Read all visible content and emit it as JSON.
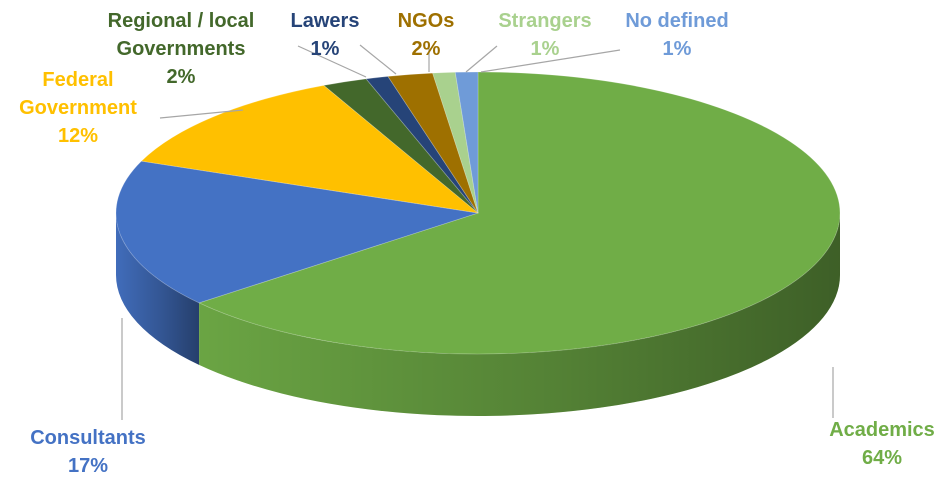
{
  "chart_data": {
    "type": "pie",
    "title": "",
    "style": "3d",
    "legend": "none",
    "categories": [
      "Academics",
      "Consultants",
      "Federal Government",
      "Regional / local Governments",
      "Lawers",
      "NGOs",
      "Strangers",
      "No defined"
    ],
    "values": [
      64,
      17,
      12,
      2,
      1,
      2,
      1,
      1
    ],
    "slices": [
      {
        "label_lines": [
          "Academics"
        ],
        "value": 64,
        "value_label": "64%",
        "color": "#70ad47"
      },
      {
        "label_lines": [
          "Consultants"
        ],
        "value": 17,
        "value_label": "17%",
        "color": "#4472c4"
      },
      {
        "label_lines": [
          "Federal",
          "Government"
        ],
        "value": 12,
        "value_label": "12%",
        "color": "#ffc000"
      },
      {
        "label_lines": [
          "Regional / local",
          "Governments"
        ],
        "value": 2,
        "value_label": "2%",
        "color": "#43682b"
      },
      {
        "label_lines": [
          "Lawers"
        ],
        "value": 1,
        "value_label": "1%",
        "color": "#264478"
      },
      {
        "label_lines": [
          "NGOs"
        ],
        "value": 2,
        "value_label": "2%",
        "color": "#9e7000"
      },
      {
        "label_lines": [
          "Strangers"
        ],
        "value": 1,
        "value_label": "1%",
        "color": "#a9d18e"
      },
      {
        "label_lines": [
          "No defined"
        ],
        "value": 1,
        "value_label": "1%",
        "color": "#6f9bd8"
      }
    ]
  }
}
